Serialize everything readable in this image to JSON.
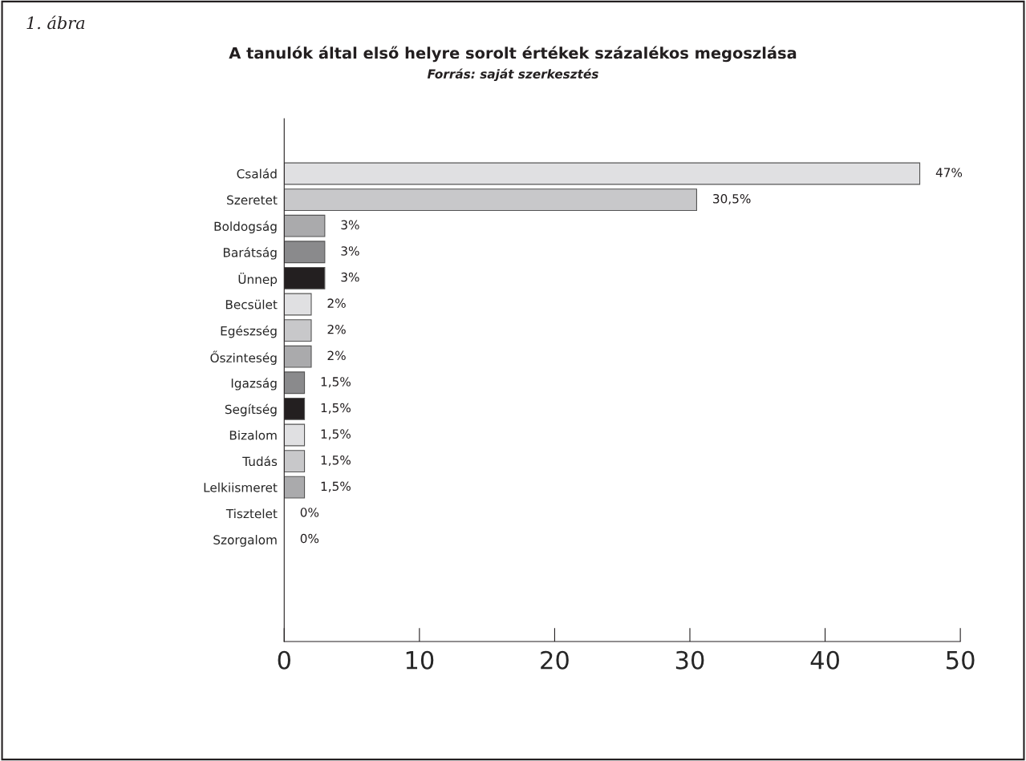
{
  "chart_data": {
    "type": "bar",
    "orientation": "horizontal",
    "title": "A tanulók által első helyre sorolt értékek százalékos megoszlása",
    "subtitle": "Forrás: saját szerkesztés",
    "annotations": [
      "1. ábra"
    ],
    "categories": [
      "Család",
      "Szeretet",
      "Boldogság",
      "Barátság",
      "Ünnep",
      "Becsület",
      "Egészség",
      "Őszinteség",
      "Igazság",
      "Segítség",
      "Bizalom",
      "Tudás",
      "Lelkiismeret",
      "Tisztelet",
      "Szorgalom"
    ],
    "values": [
      47,
      30.5,
      3,
      3,
      3,
      2,
      2,
      2,
      1.5,
      1.5,
      1.5,
      1.5,
      1.5,
      0,
      0
    ],
    "value_labels": [
      "47%",
      "30,5%",
      "3%",
      "3%",
      "3%",
      "2%",
      "2%",
      "2%",
      "1,5%",
      "1,5%",
      "1,5%",
      "1,5%",
      "1,5%",
      "0%",
      "0%"
    ],
    "colors": [
      "#e0e0e2",
      "#c8c8ca",
      "#aaaaac",
      "#8a8a8c",
      "#231f20",
      "#e0e0e2",
      "#c8c8ca",
      "#aaaaac",
      "#8a8a8c",
      "#231f20",
      "#e0e0e2",
      "#c8c8ca",
      "#aaaaac",
      null,
      null
    ],
    "xlim": [
      0,
      50
    ],
    "xticks": [
      0,
      10,
      20,
      30,
      40,
      50
    ],
    "grid": false,
    "legend": false
  }
}
